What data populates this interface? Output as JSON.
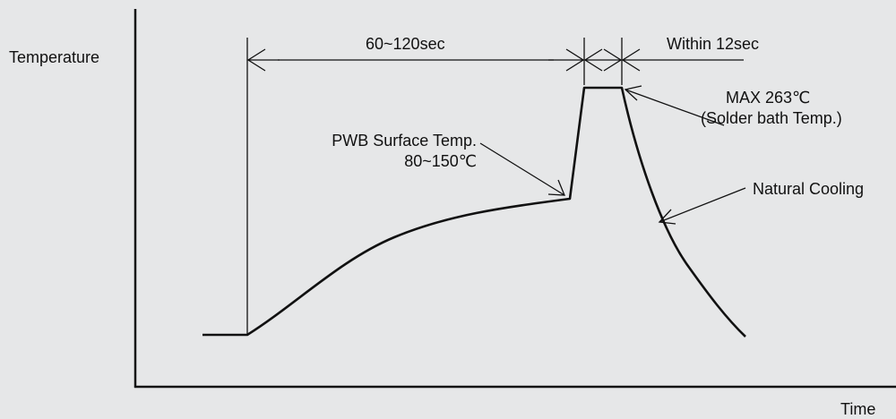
{
  "diagram": {
    "axis_y_label": "Temperature",
    "axis_x_label": "Time",
    "preheat_duration": "60~120sec",
    "peak_duration": "Within 12sec",
    "pwb_surface_label": "PWB Surface Temp.",
    "pwb_surface_range": "80~150℃",
    "max_temp_label": "MAX 263℃",
    "max_temp_note": "(Solder bath Temp.)",
    "cooling_label": "Natural Cooling",
    "colors": {
      "background": "#e6e7e8",
      "line": "#111111"
    }
  }
}
